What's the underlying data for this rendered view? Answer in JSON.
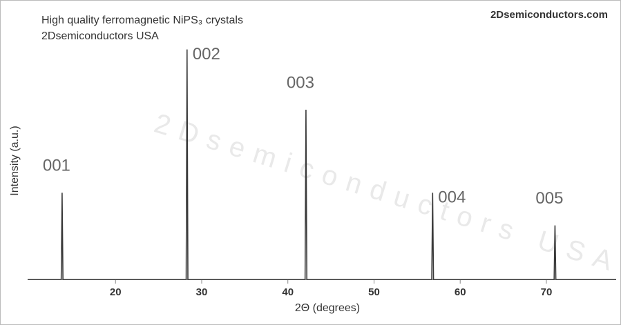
{
  "chart_data": {
    "type": "line",
    "title": "High quality ferromagnetic NiPS₃ crystals",
    "subtitle": "2Dsemiconductors USA",
    "brand": "2Dsemiconductors.com",
    "watermark": "2Dsemiconductors USA",
    "x_label": "2Θ (degrees)",
    "y_label": "Intensity (a.u.)",
    "x": [
      9.8,
      13.7,
      13.8,
      13.9,
      28.2,
      28.3,
      28.4,
      42.0,
      42.1,
      42.2,
      56.7,
      56.8,
      56.9,
      70.9,
      71.0,
      71.1,
      78.1
    ],
    "series": [
      {
        "name": "NiPS₃",
        "color": "#3a3a3a",
        "values": [
          0,
          0,
          37.7,
          0,
          0,
          100,
          0,
          0,
          73.8,
          0,
          0,
          37.7,
          0,
          0,
          23.5,
          0,
          0
        ]
      }
    ],
    "annotations": [
      {
        "text": "001",
        "x": 13.8,
        "y": 37.7
      },
      {
        "text": "002",
        "x": 28.3,
        "y": 100
      },
      {
        "text": "003",
        "x": 42.1,
        "y": 73.8
      },
      {
        "text": "004",
        "x": 56.8,
        "y": 37.7
      },
      {
        "text": "005",
        "x": 71.0,
        "y": 23.5
      }
    ],
    "xlim": [
      9.8,
      78.1
    ],
    "xticks": [
      20,
      30,
      40,
      50,
      60,
      70
    ],
    "ylim": [
      0,
      120
    ]
  }
}
